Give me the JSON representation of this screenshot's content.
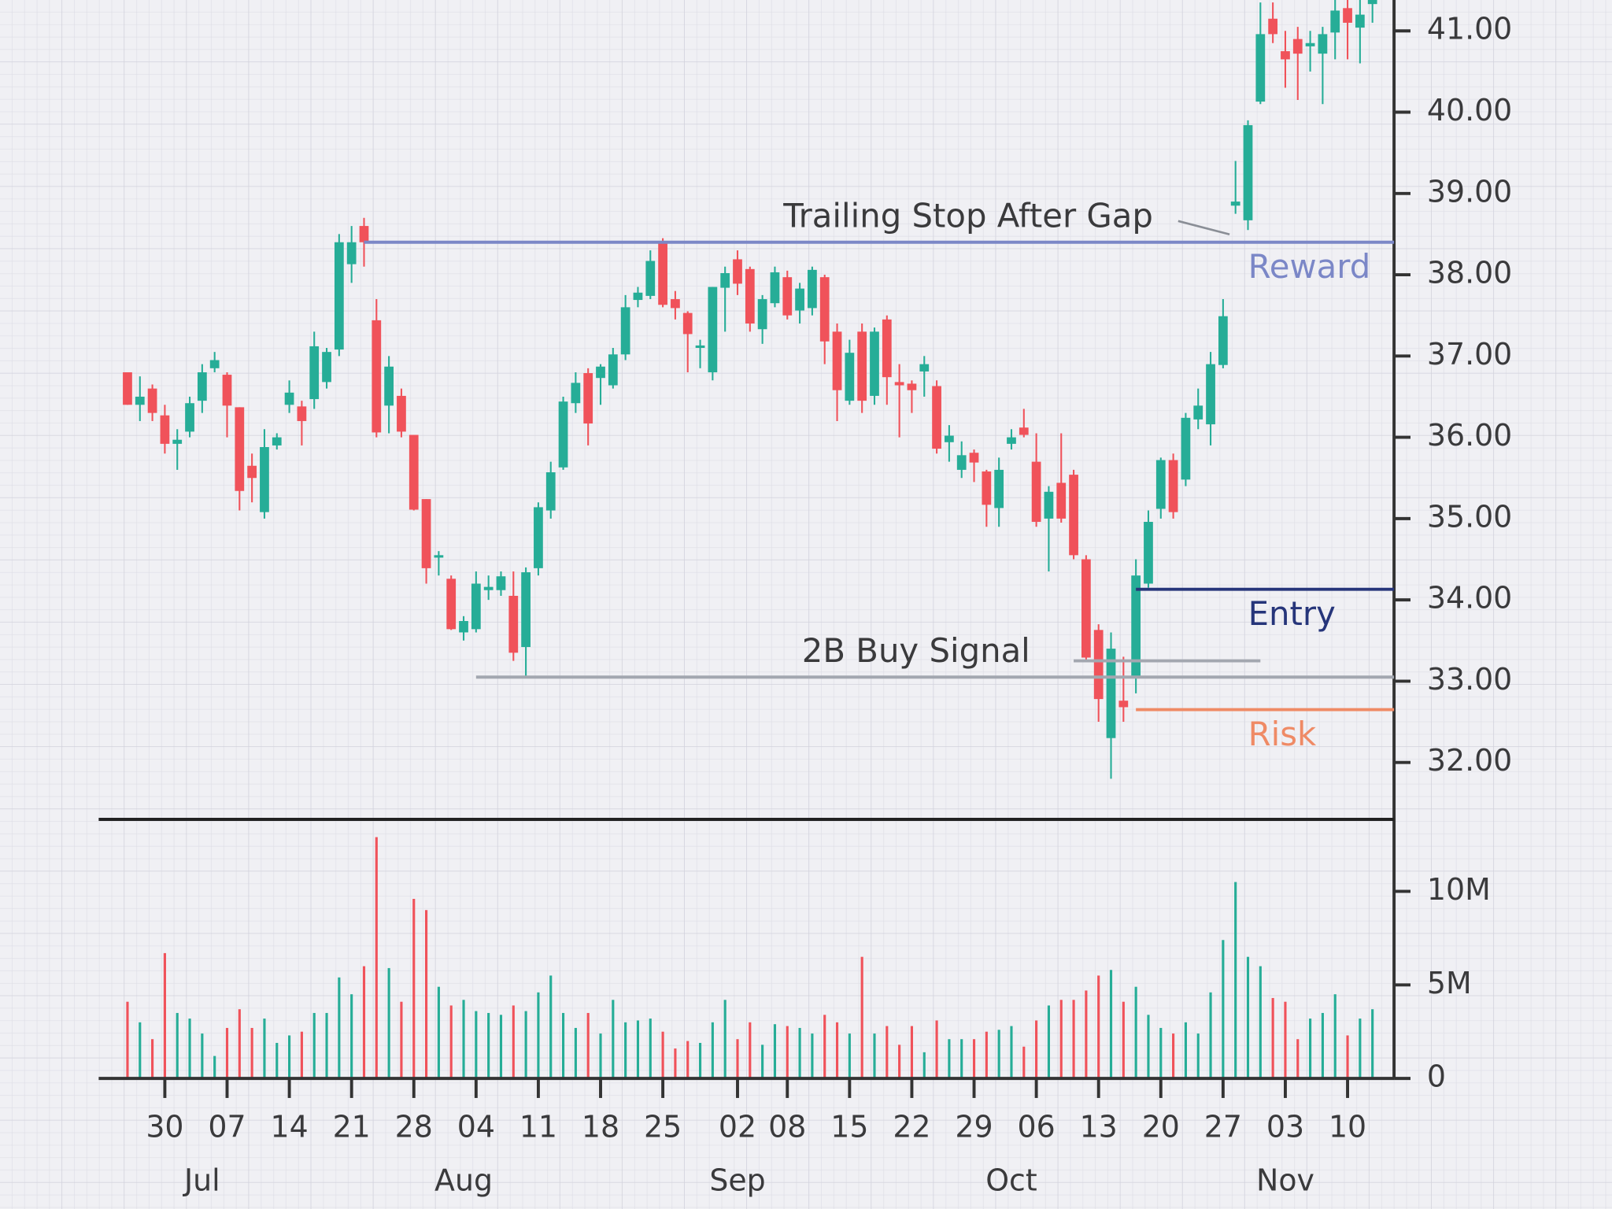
{
  "chart_data": {
    "type": "candlestick",
    "categories": [
      "Jun 25",
      "Jun 26",
      "Jun 27",
      "Jun 30",
      "Jul 01",
      "Jul 02",
      "Jul 03",
      "Jul 04",
      "Jul 07",
      "Jul 08",
      "Jul 09",
      "Jul 10",
      "Jul 11",
      "Jul 14",
      "Jul 15",
      "Jul 16",
      "Jul 17",
      "Jul 18",
      "Jul 21",
      "Jul 22",
      "Jul 23",
      "Jul 24",
      "Jul 25",
      "Jul 28",
      "Jul 29",
      "Jul 30",
      "Jul 31",
      "Aug 01",
      "Aug 04",
      "Aug 05",
      "Aug 06",
      "Aug 07",
      "Aug 08",
      "Aug 11",
      "Aug 12",
      "Aug 13",
      "Aug 14",
      "Aug 15",
      "Aug 18",
      "Aug 19",
      "Aug 20",
      "Aug 21",
      "Aug 22",
      "Aug 25",
      "Aug 26",
      "Aug 27",
      "Aug 28",
      "Aug 29",
      "Sep 01",
      "Sep 02",
      "Sep 03",
      "Sep 04",
      "Sep 05",
      "Sep 08",
      "Sep 09",
      "Sep 10",
      "Sep 11",
      "Sep 12",
      "Sep 15",
      "Sep 16",
      "Sep 17",
      "Sep 18",
      "Sep 19",
      "Sep 22",
      "Sep 23",
      "Sep 24",
      "Sep 25",
      "Sep 26",
      "Sep 29",
      "Sep 30",
      "Oct 01",
      "Oct 02",
      "Oct 03",
      "Oct 06",
      "Oct 07",
      "Oct 08",
      "Oct 09",
      "Oct 10",
      "Oct 13",
      "Oct 14",
      "Oct 15",
      "Oct 16",
      "Oct 17",
      "Oct 20",
      "Oct 21",
      "Oct 22",
      "Oct 23",
      "Oct 24",
      "Oct 27",
      "Oct 28",
      "Oct 29",
      "Oct 30",
      "Oct 31",
      "Nov 03",
      "Nov 04",
      "Nov 05",
      "Nov 06",
      "Nov 07",
      "Nov 10",
      "Nov 11",
      "Nov 12"
    ],
    "open": [
      36.8,
      36.4,
      36.6,
      36.27,
      35.92,
      36.07,
      36.45,
      36.85,
      36.77,
      36.37,
      35.65,
      35.08,
      35.9,
      36.4,
      36.38,
      36.47,
      36.68,
      37.08,
      38.13,
      38.6,
      37.44,
      36.39,
      36.51,
      36.03,
      35.24,
      34.52,
      34.26,
      33.6,
      33.64,
      34.12,
      34.12,
      34.05,
      33.42,
      34.39,
      35.1,
      35.63,
      36.42,
      36.79,
      36.73,
      36.64,
      37.02,
      37.69,
      37.74,
      38.4,
      37.7,
      37.53,
      37.1,
      36.8,
      37.84,
      38.19,
      38.07,
      37.33,
      37.65,
      37.97,
      37.56,
      37.59,
      37.97,
      37.3,
      36.45,
      37.3,
      36.51,
      37.45,
      36.68,
      36.66,
      36.81,
      36.63,
      35.94,
      35.6,
      35.81,
      35.58,
      35.13,
      35.92,
      36.12,
      35.7,
      35.0,
      35.44,
      35.54,
      34.5,
      33.63,
      32.3,
      32.76,
      33.06,
      34.2,
      35.12,
      35.72,
      35.48,
      36.22,
      36.16,
      36.89,
      38.85,
      38.67,
      40.13,
      41.15,
      40.75,
      40.9,
      40.81,
      40.72,
      40.98,
      41.28,
      41.04,
      41.33
    ],
    "high": [
      36.8,
      36.75,
      36.65,
      36.4,
      36.1,
      36.5,
      36.9,
      37.05,
      36.8,
      36.37,
      35.8,
      36.1,
      36.05,
      36.7,
      36.45,
      37.3,
      37.1,
      38.5,
      38.6,
      38.7,
      37.7,
      37.0,
      36.6,
      36.03,
      35.24,
      34.6,
      34.3,
      33.8,
      34.35,
      34.3,
      34.35,
      34.35,
      34.4,
      35.2,
      35.7,
      36.5,
      36.8,
      36.85,
      36.9,
      37.1,
      37.75,
      37.85,
      38.3,
      38.45,
      37.8,
      37.55,
      37.2,
      37.85,
      38.1,
      38.3,
      38.1,
      37.75,
      38.1,
      38.05,
      37.9,
      38.1,
      38.0,
      37.4,
      37.2,
      37.4,
      37.35,
      37.5,
      36.9,
      36.7,
      37.0,
      36.7,
      36.15,
      35.95,
      35.85,
      35.6,
      35.75,
      36.1,
      36.35,
      36.05,
      35.4,
      36.05,
      35.6,
      34.55,
      33.7,
      33.6,
      33.3,
      34.5,
      35.1,
      35.75,
      35.8,
      36.3,
      36.6,
      37.05,
      37.7,
      39.4,
      39.9,
      41.35,
      41.35,
      41.0,
      41.05,
      41.0,
      41.05,
      41.4,
      41.4,
      41.4,
      41.45
    ],
    "low": [
      36.4,
      36.2,
      36.2,
      35.8,
      35.6,
      36.0,
      36.3,
      36.8,
      36.0,
      35.1,
      35.2,
      35.0,
      35.85,
      36.3,
      35.9,
      36.35,
      36.6,
      37.0,
      37.9,
      38.1,
      36.0,
      36.05,
      36.0,
      35.1,
      34.2,
      34.3,
      33.63,
      33.5,
      33.6,
      34.0,
      34.05,
      33.25,
      33.05,
      34.3,
      35.0,
      35.6,
      36.3,
      35.9,
      36.4,
      36.6,
      36.95,
      37.6,
      37.7,
      37.6,
      37.45,
      36.8,
      36.85,
      36.7,
      37.3,
      37.75,
      37.3,
      37.15,
      37.6,
      37.45,
      37.4,
      37.5,
      36.9,
      36.2,
      36.4,
      36.3,
      36.4,
      36.4,
      36.0,
      36.3,
      36.5,
      35.8,
      35.7,
      35.5,
      35.45,
      34.9,
      34.9,
      35.85,
      36.0,
      34.9,
      34.35,
      34.95,
      34.5,
      33.25,
      32.5,
      31.8,
      32.5,
      32.85,
      34.15,
      35.0,
      35.0,
      35.4,
      36.1,
      35.9,
      36.85,
      38.75,
      38.55,
      40.1,
      40.85,
      40.3,
      40.15,
      40.5,
      40.1,
      40.65,
      40.65,
      40.6,
      41.1
    ],
    "close": [
      36.4,
      36.5,
      36.3,
      35.92,
      35.97,
      36.42,
      36.8,
      36.95,
      36.39,
      35.34,
      35.5,
      35.88,
      36.0,
      36.55,
      36.2,
      37.12,
      37.05,
      38.4,
      38.4,
      38.4,
      36.06,
      36.87,
      36.07,
      35.11,
      34.39,
      34.55,
      33.64,
      33.74,
      34.2,
      34.16,
      34.29,
      33.35,
      34.34,
      35.14,
      35.57,
      36.44,
      36.67,
      36.17,
      36.87,
      37.02,
      37.6,
      37.78,
      38.17,
      37.63,
      37.59,
      37.27,
      37.13,
      37.85,
      38.02,
      37.89,
      37.4,
      37.7,
      38.03,
      37.5,
      37.83,
      38.06,
      37.18,
      36.58,
      37.04,
      36.45,
      37.3,
      36.74,
      36.64,
      36.58,
      36.9,
      35.86,
      36.02,
      35.78,
      35.69,
      35.17,
      35.6,
      36.0,
      36.03,
      34.96,
      35.33,
      35.0,
      34.55,
      33.29,
      32.78,
      33.4,
      32.68,
      34.3,
      34.96,
      35.72,
      35.08,
      36.24,
      36.39,
      36.9,
      37.49,
      38.9,
      39.84,
      40.96,
      40.96,
      40.65,
      40.72,
      40.85,
      40.96,
      41.25,
      41.1,
      41.2,
      41.4
    ],
    "volume": [
      4.1,
      3.0,
      2.1,
      6.7,
      3.5,
      3.2,
      2.4,
      1.2,
      2.7,
      3.7,
      2.7,
      3.2,
      1.9,
      2.3,
      2.5,
      3.5,
      3.5,
      5.4,
      4.5,
      6.0,
      12.9,
      5.9,
      4.1,
      9.6,
      9.0,
      4.9,
      3.9,
      4.2,
      3.6,
      3.5,
      3.4,
      3.9,
      3.6,
      4.6,
      5.5,
      3.5,
      2.7,
      3.5,
      2.4,
      4.2,
      3.0,
      3.1,
      3.2,
      2.5,
      1.6,
      2.0,
      1.9,
      3.0,
      4.2,
      2.1,
      3.0,
      1.8,
      2.9,
      2.8,
      2.7,
      2.4,
      3.4,
      3.0,
      2.4,
      6.5,
      2.4,
      2.8,
      1.8,
      2.8,
      1.4,
      3.1,
      2.1,
      2.1,
      2.1,
      2.5,
      2.6,
      2.8,
      1.7,
      3.1,
      3.9,
      4.2,
      4.2,
      4.7,
      5.5,
      5.8,
      4.1,
      4.9,
      3.4,
      2.7,
      2.4,
      3.0,
      2.4,
      4.6,
      7.4,
      10.5,
      6.5,
      6.0,
      4.3,
      4.1,
      2.1,
      3.2,
      3.5,
      4.5,
      2.3,
      3.2,
      3.7
    ],
    "up_color": "#26ad97",
    "down_color": "#f0525a",
    "ylim": [
      31.3,
      41.38
    ],
    "yticks": [
      {
        "value": 32,
        "label": "32.00"
      },
      {
        "value": 33,
        "label": "33.00"
      },
      {
        "value": 34,
        "label": "34.00"
      },
      {
        "value": 35,
        "label": "35.00"
      },
      {
        "value": 36,
        "label": "36.00"
      },
      {
        "value": 37,
        "label": "37.00"
      },
      {
        "value": 38,
        "label": "38.00"
      },
      {
        "value": 39,
        "label": "39.00"
      },
      {
        "value": 40,
        "label": "40.00"
      },
      {
        "value": 41,
        "label": "41.00"
      }
    ],
    "y2lim": [
      0,
      13.85
    ],
    "y2ticks": [
      0,
      {
        "value": 5,
        "label": "5M"
      },
      {
        "value": 10,
        "label": "10M"
      }
    ],
    "xticks": [
      {
        "value": "Jun 30",
        "label": "30"
      },
      {
        "value": "Jul 07",
        "label": "07"
      },
      {
        "value": "Jul 14",
        "label": "14"
      },
      {
        "value": "Jul 21",
        "label": "21"
      },
      {
        "value": "Jul 28",
        "label": "28"
      },
      {
        "value": "Aug 04",
        "label": "04"
      },
      {
        "value": "Aug 11",
        "label": "11"
      },
      {
        "value": "Aug 18",
        "label": "18"
      },
      {
        "value": "Aug 25",
        "label": "25"
      },
      {
        "value": "Sep 02",
        "label": "02"
      },
      {
        "value": "Sep 08",
        "label": "08"
      },
      {
        "value": "Sep 15",
        "label": "15"
      },
      {
        "value": "Sep 22",
        "label": "22"
      },
      {
        "value": "Sep 29",
        "label": "29"
      },
      {
        "value": "Oct 06",
        "label": "06"
      },
      {
        "value": "Oct 13",
        "label": "13"
      },
      {
        "value": "Oct 20",
        "label": "20"
      },
      {
        "value": "Oct 27",
        "label": "27"
      },
      {
        "value": "Nov 03",
        "label": "03"
      },
      {
        "value": "Nov 10",
        "label": "10"
      }
    ],
    "month_labels": [
      {
        "value": "Jul 03",
        "label": "Jul"
      },
      {
        "value": "Aug 01",
        "label": "Aug"
      },
      {
        "value": "Sep 02",
        "label": "Sep"
      },
      {
        "value": "Oct 02",
        "label": "Oct"
      },
      {
        "value": "Nov 03",
        "label": "Nov"
      }
    ],
    "levels": [
      {
        "label": "Reward",
        "value": 38.4,
        "from": "Jul 22",
        "color": "#7b87c7"
      },
      {
        "label": "Entry",
        "value": 34.13,
        "from": "Oct 16",
        "color": "#26357a"
      },
      {
        "label": "Risk",
        "value": 32.65,
        "from": "Oct 16",
        "color": "#ef8a65"
      },
      {
        "value": 33.05,
        "from": "Aug 04",
        "color": "#a3a7b0"
      },
      {
        "value": 33.25,
        "from": "Oct 09",
        "to": "Oct 30",
        "color": "#a3a7b0"
      }
    ],
    "annotations": [
      "Trailing Stop After Gap",
      "2B Buy Signal"
    ]
  }
}
